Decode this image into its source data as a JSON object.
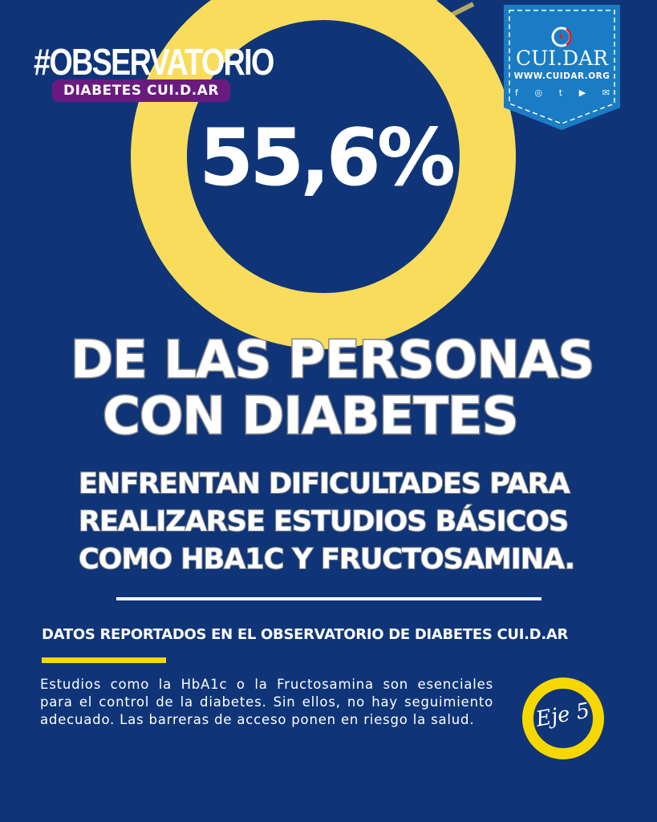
{
  "header": {
    "hashtag": "#OBSERVATORIO",
    "pill": "DIABETES CUI.D.AR"
  },
  "stat": {
    "value": "55,6%"
  },
  "headline": {
    "line1": "DE LAS PERSONAS",
    "line2": "CON DIABETES"
  },
  "subheadline": [
    "ENFRENTAN DIFICULTADES PARA",
    "REALIZARSE ESTUDIOS BÁSICOS",
    "COMO HBA1C Y FRUCTOSAMINA."
  ],
  "source": "DATOS REPORTADOS EN EL OBSERVATORIO DE DIABETES CUI.D.AR",
  "body": "Estudios como la HbA1c o la Fructosamina son esenciales para el control de la diabetes. Sin ellos, no hay seguimiento adecuado. Las barreras de acceso ponen en riesgo la salud.",
  "badge": {
    "brand": "CUI.DAR",
    "url": "WWW.CUIDAR.ORG",
    "icons": [
      "facebook-icon",
      "instagram-icon",
      "twitter-icon",
      "youtube-icon",
      "mail-icon"
    ]
  },
  "axis_label": "Eje 5",
  "colors": {
    "background": "#0f3578",
    "yellow": "#f9dc5c",
    "purple": "#6a1b80",
    "badge": "#1a7cc4",
    "accent_red": "#d9262c"
  }
}
